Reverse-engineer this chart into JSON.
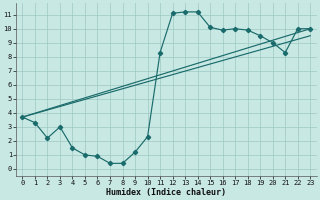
{
  "bg_color": "#c8e8e4",
  "grid_color": "#9dc8c2",
  "line_color": "#1a6b6b",
  "xlabel": "Humidex (Indice chaleur)",
  "xlim": [
    -0.5,
    23.5
  ],
  "ylim": [
    -0.5,
    11.8
  ],
  "xticks": [
    0,
    1,
    2,
    3,
    4,
    5,
    6,
    7,
    8,
    9,
    10,
    11,
    12,
    13,
    14,
    15,
    16,
    17,
    18,
    19,
    20,
    21,
    22,
    23
  ],
  "yticks": [
    0,
    1,
    2,
    3,
    4,
    5,
    6,
    7,
    8,
    9,
    10,
    11
  ],
  "curve_x": [
    0,
    1,
    2,
    3,
    4,
    5,
    6,
    7,
    8,
    9,
    10,
    11,
    12,
    13,
    14,
    15,
    16,
    17,
    18,
    19,
    20,
    21,
    22,
    23
  ],
  "curve_y": [
    3.7,
    3.3,
    2.2,
    3.0,
    1.5,
    1.0,
    0.9,
    0.4,
    0.4,
    1.2,
    2.3,
    8.3,
    11.1,
    11.2,
    11.2,
    10.1,
    9.9,
    10.0,
    9.9,
    9.5,
    9.0,
    8.3,
    10.0,
    10.0
  ],
  "trend1_x": [
    0,
    23
  ],
  "trend1_y": [
    3.7,
    10.0
  ],
  "trend2_x": [
    0,
    23
  ],
  "trend2_y": [
    3.7,
    9.5
  ]
}
